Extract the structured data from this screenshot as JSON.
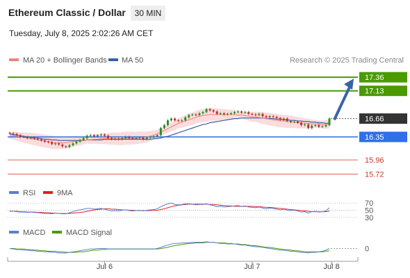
{
  "header": {
    "title": "Ethereum Classic / Dollar",
    "timeframe": "30 MIN",
    "datetime": "Tuesday, July 8, 2025 2:02:26 AM CET"
  },
  "legend": {
    "ma20": "MA 20 + Bollinger Bands",
    "ma50": "MA 50",
    "credit": "Research © 2025 Trading Central"
  },
  "rsi_legend": {
    "rsi": "RSI",
    "ma9": "9MA"
  },
  "macd_legend": {
    "macd": "MACD",
    "signal": "MACD Signal"
  },
  "colors": {
    "resistance": "#4a9a00",
    "support_blue": "#2f6fe8",
    "support_red": "#e0605a",
    "ma20": "#f08080",
    "ma50": "#3a5fa8",
    "bollinger": "#fbdcdc",
    "up": "#2e8b2e",
    "down": "#c03030",
    "arrow": "#3a64a8",
    "current": "#333333"
  },
  "chart_data": [
    {
      "type": "candlestick",
      "title": "Ethereum Classic / Dollar",
      "x_ticks": [
        "Jul 6",
        "Jul 7",
        "Jul 8"
      ],
      "ylim": [
        15.55,
        17.55
      ],
      "levels": [
        {
          "value": 17.36,
          "label": "17.36",
          "kind": "resistance"
        },
        {
          "value": 17.13,
          "label": "17.13",
          "kind": "resistance"
        },
        {
          "value": 16.66,
          "label": "16.66",
          "kind": "current"
        },
        {
          "value": 16.35,
          "label": "16.35",
          "kind": "support_blue"
        },
        {
          "value": 15.96,
          "label": "15.96",
          "kind": "support_red"
        },
        {
          "value": 15.72,
          "label": "15.72",
          "kind": "support_red"
        }
      ],
      "close": [
        16.41,
        16.4,
        16.38,
        16.35,
        16.35,
        16.33,
        16.34,
        16.32,
        16.31,
        16.29,
        16.27,
        16.26,
        16.23,
        16.24,
        16.22,
        16.19,
        16.18,
        16.21,
        16.24,
        16.27,
        16.3,
        16.33,
        16.37,
        16.38,
        16.36,
        16.38,
        16.39,
        16.37,
        16.33,
        16.31,
        16.32,
        16.31,
        16.33,
        16.35,
        16.33,
        16.32,
        16.33,
        16.34,
        16.31,
        16.34,
        16.35,
        16.36,
        16.38,
        16.5,
        16.55,
        16.63,
        16.66,
        16.63,
        16.62,
        16.63,
        16.68,
        16.72,
        16.73,
        16.72,
        16.75,
        16.77,
        16.82,
        16.8,
        16.78,
        16.74,
        16.75,
        16.73,
        16.74,
        16.75,
        16.77,
        16.78,
        16.76,
        16.77,
        16.74,
        16.73,
        16.72,
        16.74,
        16.7,
        16.68,
        16.7,
        16.69,
        16.67,
        16.64,
        16.66,
        16.62,
        16.6,
        16.61,
        16.59,
        16.55,
        16.56,
        16.5,
        16.54,
        16.55,
        16.52,
        16.53,
        16.55,
        16.66
      ],
      "series": [
        {
          "name": "MA 20",
          "values": [
            16.37,
            16.37,
            16.36,
            16.35,
            16.34,
            16.33,
            16.32,
            16.31,
            16.3,
            16.29,
            16.28,
            16.27,
            16.26,
            16.25,
            16.25,
            16.25,
            16.25,
            16.26,
            16.27,
            16.28,
            16.28,
            16.29,
            16.3,
            16.3,
            16.31,
            16.31,
            16.32,
            16.32,
            16.32,
            16.32,
            16.32,
            16.32,
            16.32,
            16.33,
            16.33,
            16.33,
            16.33,
            16.34,
            16.34,
            16.35,
            16.36,
            16.38,
            16.4,
            16.43,
            16.46,
            16.49,
            16.52,
            16.55,
            16.58,
            16.6,
            16.62,
            16.64,
            16.66,
            16.68,
            16.7,
            16.71,
            16.72,
            16.73,
            16.73,
            16.73,
            16.73,
            16.73,
            16.73,
            16.73,
            16.73,
            16.72,
            16.72,
            16.71,
            16.7,
            16.69,
            16.69,
            16.68,
            16.67,
            16.66,
            16.65,
            16.64,
            16.63,
            16.62,
            16.62,
            16.61,
            16.61,
            16.6,
            16.59,
            16.59,
            16.58,
            16.58,
            16.57,
            16.57,
            16.57,
            16.56,
            16.56,
            16.57
          ]
        },
        {
          "name": "MA 50",
          "values": [
            16.4,
            16.39,
            16.38,
            16.37,
            16.36,
            16.35,
            16.34,
            16.33,
            16.33,
            16.32,
            16.31,
            16.31,
            16.3,
            16.3,
            16.29,
            16.29,
            16.29,
            16.29,
            16.29,
            16.29,
            16.29,
            16.29,
            16.3,
            16.3,
            16.3,
            16.3,
            16.3,
            16.31,
            16.31,
            16.31,
            16.31,
            16.31,
            16.31,
            16.31,
            16.31,
            16.31,
            16.31,
            16.31,
            16.31,
            16.31,
            16.31,
            16.32,
            16.32,
            16.33,
            16.35,
            16.36,
            16.38,
            16.4,
            16.42,
            16.44,
            16.46,
            16.48,
            16.5,
            16.52,
            16.54,
            16.56,
            16.57,
            16.59,
            16.6,
            16.61,
            16.62,
            16.63,
            16.64,
            16.65,
            16.66,
            16.66,
            16.67,
            16.67,
            16.67,
            16.67,
            16.67,
            16.67,
            16.67,
            16.66,
            16.66,
            16.66,
            16.65,
            16.65,
            16.64,
            16.64,
            16.63,
            16.63,
            16.62,
            16.62,
            16.61,
            16.61,
            16.6,
            16.6,
            16.59,
            16.59,
            16.58,
            16.58
          ]
        }
      ]
    },
    {
      "type": "line",
      "title": "RSI",
      "y_ticks": [
        70,
        50,
        30
      ],
      "ylim": [
        20,
        80
      ],
      "series": [
        {
          "name": "RSI",
          "values": [
            48,
            47,
            46,
            45,
            45,
            44,
            45,
            44,
            43,
            42,
            41,
            41,
            40,
            42,
            41,
            40,
            40,
            43,
            46,
            49,
            51,
            53,
            55,
            55,
            53,
            54,
            55,
            53,
            50,
            48,
            49,
            48,
            50,
            51,
            49,
            48,
            49,
            50,
            48,
            50,
            51,
            52,
            54,
            60,
            64,
            68,
            70,
            66,
            65,
            66,
            68,
            68,
            67,
            65,
            66,
            66,
            68,
            65,
            63,
            60,
            61,
            59,
            60,
            61,
            62,
            63,
            61,
            62,
            59,
            58,
            57,
            59,
            56,
            54,
            56,
            55,
            53,
            51,
            53,
            50,
            49,
            50,
            48,
            45,
            46,
            42,
            46,
            47,
            45,
            46,
            48,
            57
          ]
        },
        {
          "name": "9MA",
          "values": [
            47,
            47,
            47,
            46,
            46,
            45,
            45,
            45,
            44,
            44,
            43,
            43,
            42,
            42,
            41,
            41,
            41,
            41,
            42,
            43,
            44,
            45,
            47,
            49,
            51,
            52,
            53,
            54,
            54,
            53,
            53,
            52,
            51,
            51,
            50,
            50,
            49,
            49,
            49,
            49,
            49,
            50,
            50,
            52,
            54,
            57,
            60,
            62,
            64,
            65,
            66,
            67,
            67,
            67,
            67,
            67,
            67,
            66,
            66,
            65,
            64,
            63,
            62,
            62,
            61,
            61,
            61,
            61,
            61,
            61,
            60,
            60,
            59,
            58,
            58,
            57,
            56,
            55,
            54,
            53,
            52,
            51,
            50,
            49,
            48,
            47,
            46,
            46,
            46,
            46,
            46,
            48
          ]
        }
      ]
    },
    {
      "type": "line",
      "title": "MACD",
      "y_ticks": [
        0
      ],
      "ylim": [
        -0.18,
        0.18
      ],
      "series": [
        {
          "name": "MACD",
          "values": [
            0.0,
            -0.01,
            -0.02,
            -0.02,
            -0.03,
            -0.03,
            -0.04,
            -0.04,
            -0.05,
            -0.05,
            -0.06,
            -0.06,
            -0.07,
            -0.07,
            -0.08,
            -0.08,
            -0.08,
            -0.07,
            -0.06,
            -0.05,
            -0.04,
            -0.03,
            -0.02,
            -0.01,
            -0.01,
            0.0,
            0.0,
            0.0,
            -0.01,
            -0.01,
            -0.01,
            -0.01,
            -0.01,
            -0.01,
            -0.01,
            -0.01,
            -0.01,
            -0.01,
            -0.01,
            -0.01,
            -0.01,
            -0.01,
            0.0,
            0.02,
            0.04,
            0.06,
            0.08,
            0.09,
            0.09,
            0.1,
            0.1,
            0.1,
            0.11,
            0.11,
            0.11,
            0.11,
            0.12,
            0.11,
            0.11,
            0.1,
            0.09,
            0.09,
            0.08,
            0.08,
            0.08,
            0.07,
            0.06,
            0.06,
            0.05,
            0.04,
            0.03,
            0.03,
            0.02,
            0.01,
            0.0,
            -0.01,
            -0.02,
            -0.03,
            -0.03,
            -0.04,
            -0.05,
            -0.05,
            -0.06,
            -0.07,
            -0.07,
            -0.08,
            -0.07,
            -0.07,
            -0.06,
            -0.05,
            -0.03,
            0.0
          ]
        },
        {
          "name": "MACD Signal",
          "values": [
            0.0,
            0.0,
            -0.01,
            -0.01,
            -0.01,
            -0.02,
            -0.02,
            -0.03,
            -0.03,
            -0.04,
            -0.04,
            -0.05,
            -0.05,
            -0.05,
            -0.06,
            -0.06,
            -0.07,
            -0.07,
            -0.07,
            -0.07,
            -0.06,
            -0.06,
            -0.05,
            -0.04,
            -0.03,
            -0.03,
            -0.02,
            -0.02,
            -0.01,
            -0.01,
            -0.01,
            -0.01,
            -0.01,
            -0.01,
            -0.01,
            -0.01,
            -0.01,
            -0.01,
            -0.01,
            -0.01,
            -0.01,
            -0.01,
            -0.01,
            0.0,
            0.01,
            0.02,
            0.04,
            0.05,
            0.06,
            0.07,
            0.08,
            0.09,
            0.09,
            0.1,
            0.1,
            0.1,
            0.11,
            0.11,
            0.11,
            0.1,
            0.1,
            0.1,
            0.09,
            0.09,
            0.08,
            0.08,
            0.07,
            0.07,
            0.06,
            0.05,
            0.05,
            0.04,
            0.03,
            0.02,
            0.02,
            0.01,
            0.0,
            -0.01,
            -0.02,
            -0.02,
            -0.03,
            -0.04,
            -0.04,
            -0.05,
            -0.06,
            -0.06,
            -0.06,
            -0.06,
            -0.06,
            -0.06,
            -0.05,
            -0.04
          ]
        }
      ]
    }
  ]
}
